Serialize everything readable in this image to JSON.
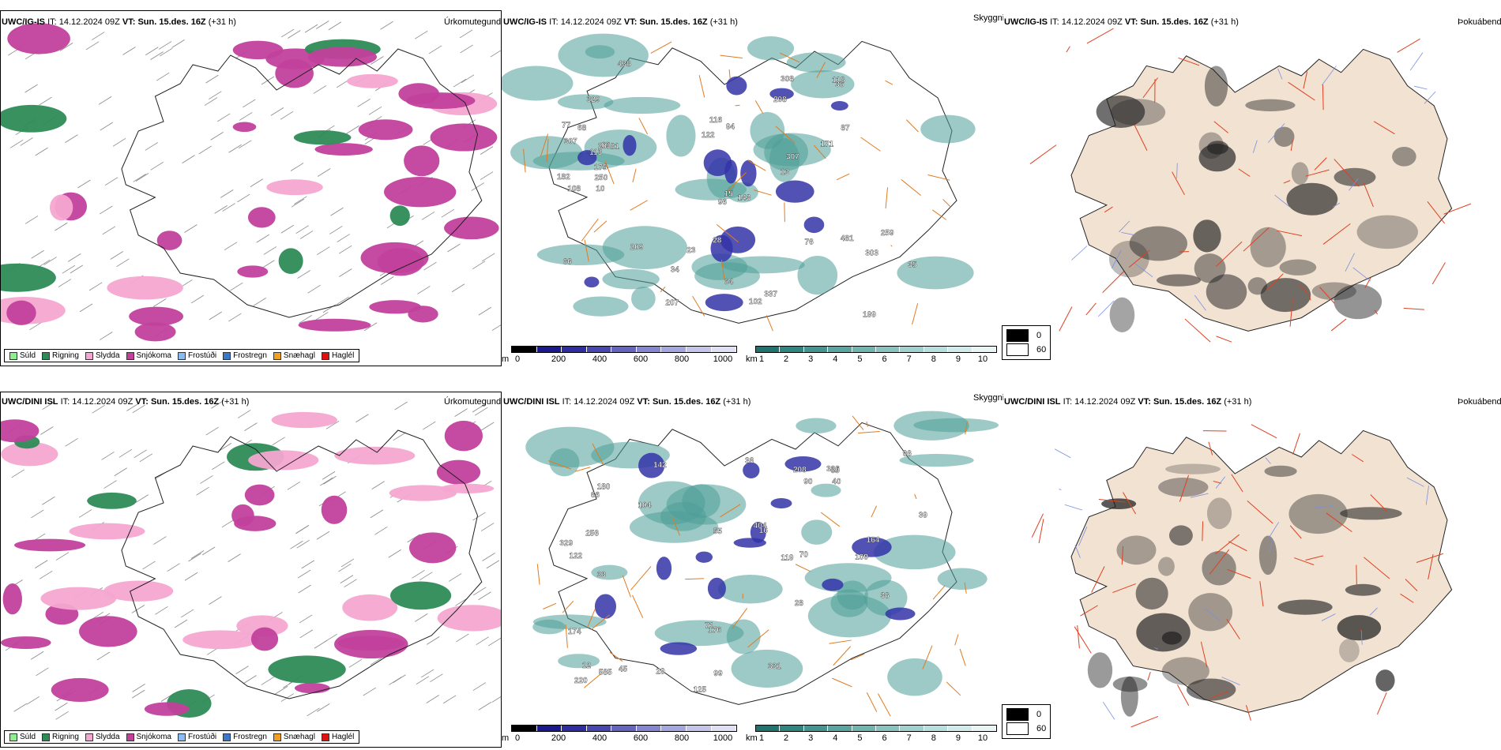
{
  "rows": [
    {
      "model": "UWC/IG-IS",
      "it_label": "IT:",
      "it_value": "14.12.2024 09Z",
      "vt_label": "VT:",
      "vt_value": "Sun. 15.des. 16Z",
      "lead": "(+31 h)"
    },
    {
      "model": "UWC/DINI ISL",
      "it_label": "IT:",
      "it_value": "14.12.2024 09Z",
      "vt_label": "VT:",
      "vt_value": "Sun. 15.des. 16Z",
      "lead": "(+31 h)"
    }
  ],
  "panel_titles": {
    "precip": "Úrkomutegund",
    "visibility": "Skyggni",
    "fog": "Þokuábendi"
  },
  "precip_legend": [
    {
      "label": "Súld",
      "color": "#90ee90"
    },
    {
      "label": "Rigning",
      "color": "#2e8b57"
    },
    {
      "label": "Slydda",
      "color": "#f4a6d0"
    },
    {
      "label": "Snjókoma",
      "color": "#c2409c"
    },
    {
      "label": "Frostúði",
      "color": "#87bdf0"
    },
    {
      "label": "Frostregn",
      "color": "#3a78c8"
    },
    {
      "label": "Snæhagl",
      "color": "#f0a020"
    },
    {
      "label": "Haglél",
      "color": "#e01010"
    }
  ],
  "ceiling_bar": {
    "unit": "m",
    "ticks": [
      "0",
      "200",
      "400",
      "600",
      "800",
      "1000"
    ],
    "colors": [
      "#000000",
      "#1a1a8c",
      "#2e2ea0",
      "#4747b0",
      "#6565c0",
      "#8585d0",
      "#a5a5df",
      "#c5c5ea",
      "#e0e0f4"
    ]
  },
  "visibility_bar": {
    "unit": "km",
    "ticks": [
      "1",
      "2",
      "3",
      "4",
      "5",
      "6",
      "7",
      "8",
      "9",
      "10"
    ],
    "colors": [
      "#1f7470",
      "#2f8580",
      "#449590",
      "#5aa5a0",
      "#70b5b0",
      "#88c3bf",
      "#a0d1ce",
      "#b8dfdc",
      "#d0ebe9",
      "#e8f5f4"
    ]
  },
  "fog_legend": [
    {
      "label": "0",
      "color": "#000000"
    },
    {
      "label": "60",
      "color": "#ffffff"
    }
  ],
  "map_labels": {
    "row0_mid": [
      "438",
      "199",
      "303",
      "337",
      "307",
      "308",
      "307",
      "207",
      "208",
      "76",
      "77",
      "69",
      "68",
      "143",
      "102",
      "113",
      "329",
      "81",
      "201",
      "175",
      "34",
      "15",
      "259",
      "23",
      "94",
      "87",
      "13",
      "64",
      "10",
      "116",
      "481",
      "209",
      "250",
      "118",
      "122",
      "182",
      "171",
      "108",
      "96",
      "66",
      "28",
      "36",
      "35"
    ],
    "row1_mid": [
      "180",
      "404",
      "329",
      "585",
      "99",
      "142",
      "33",
      "40",
      "12",
      "55",
      "164",
      "65",
      "71",
      "220",
      "208",
      "125",
      "90",
      "66",
      "70",
      "256",
      "176",
      "119",
      "331",
      "96",
      "16",
      "36",
      "122",
      "109",
      "104",
      "39",
      "326",
      "174",
      "45",
      "28",
      "29",
      "36"
    ]
  },
  "colors": {
    "snow": "#c2409c",
    "rain": "#2e8b57",
    "sleet": "#f4a6d0",
    "teal": "#4d9e98",
    "blue": "#3434a8",
    "orange": "#e07b20",
    "land": "#f2e2d2",
    "road": "#e04020",
    "river": "#7b8fe0"
  }
}
